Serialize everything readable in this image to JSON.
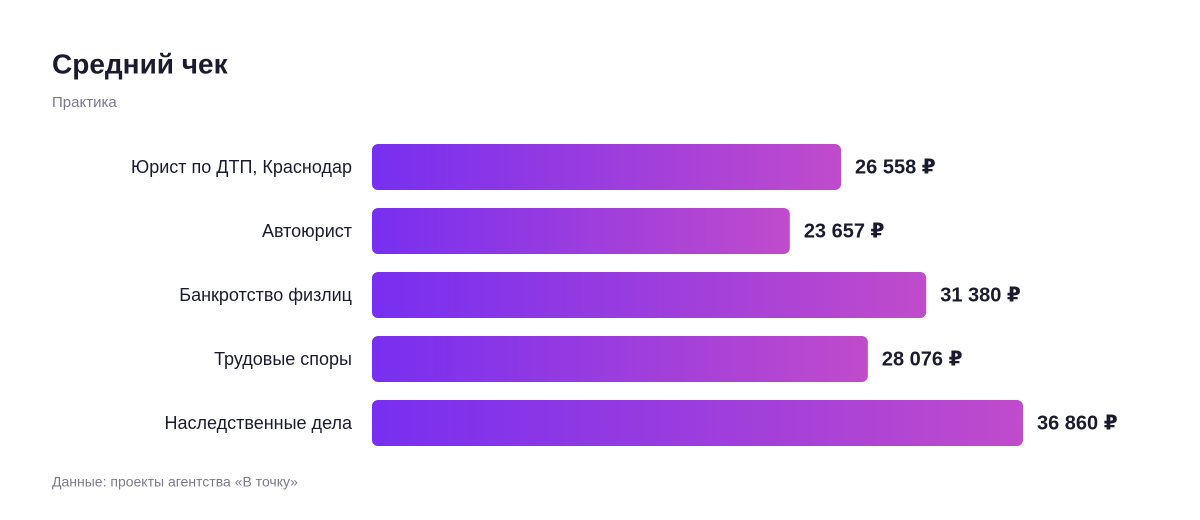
{
  "chart_data": {
    "type": "bar",
    "orientation": "horizontal",
    "title": "Средний чек",
    "subtitle": "Практика",
    "categories": [
      "Юрист по ДТП, Краснодар",
      "Автоюрист",
      "Банкротство физлиц",
      "Трудовые споры",
      "Наследственные дела"
    ],
    "values": [
      26558,
      23657,
      31380,
      28076,
      36860
    ],
    "value_labels": [
      "26 558 ₽",
      "23 657 ₽",
      "31 380 ₽",
      "28 076 ₽",
      "36 860 ₽"
    ],
    "color": "#772ff0",
    "color_end": "#c04bcb",
    "source": "Данные: проекты агентства «В точку»"
  }
}
